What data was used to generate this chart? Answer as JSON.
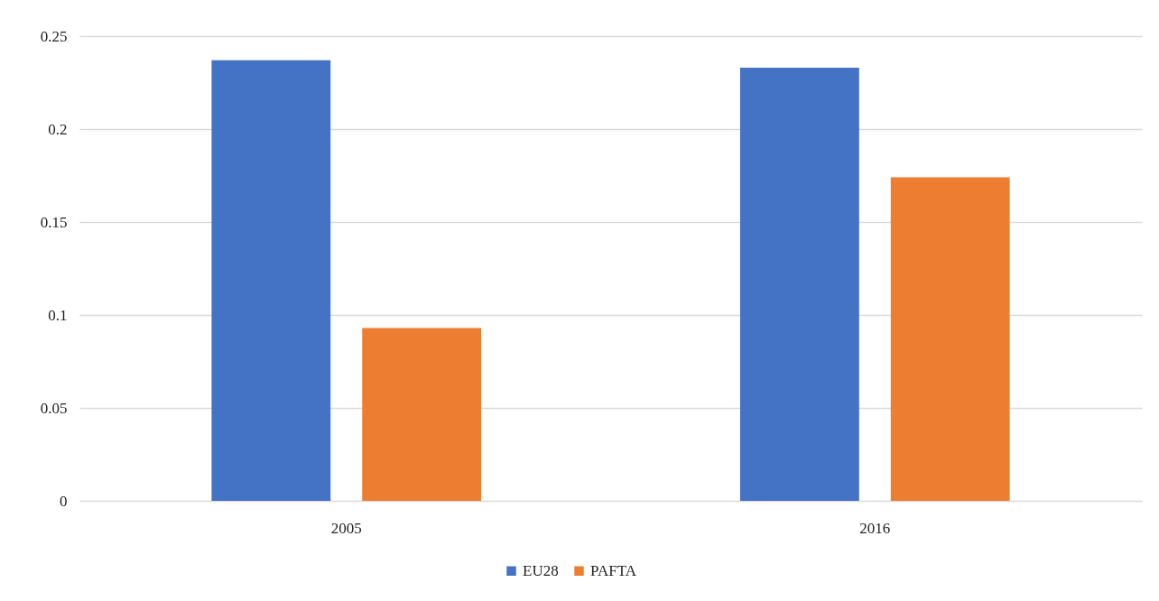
{
  "chart_data": {
    "type": "bar",
    "categories": [
      "2005",
      "2016"
    ],
    "series": [
      {
        "name": "EU28",
        "color": "#4472c4",
        "values": [
          0.237,
          0.233
        ]
      },
      {
        "name": "PAFTA",
        "color": "#ed7d31",
        "values": [
          0.093,
          0.174
        ]
      }
    ],
    "ylim": [
      0,
      0.25
    ],
    "yticks": [
      0,
      0.05,
      0.1,
      0.15,
      0.2,
      0.25
    ],
    "grid": "y",
    "legend": "bottom"
  }
}
